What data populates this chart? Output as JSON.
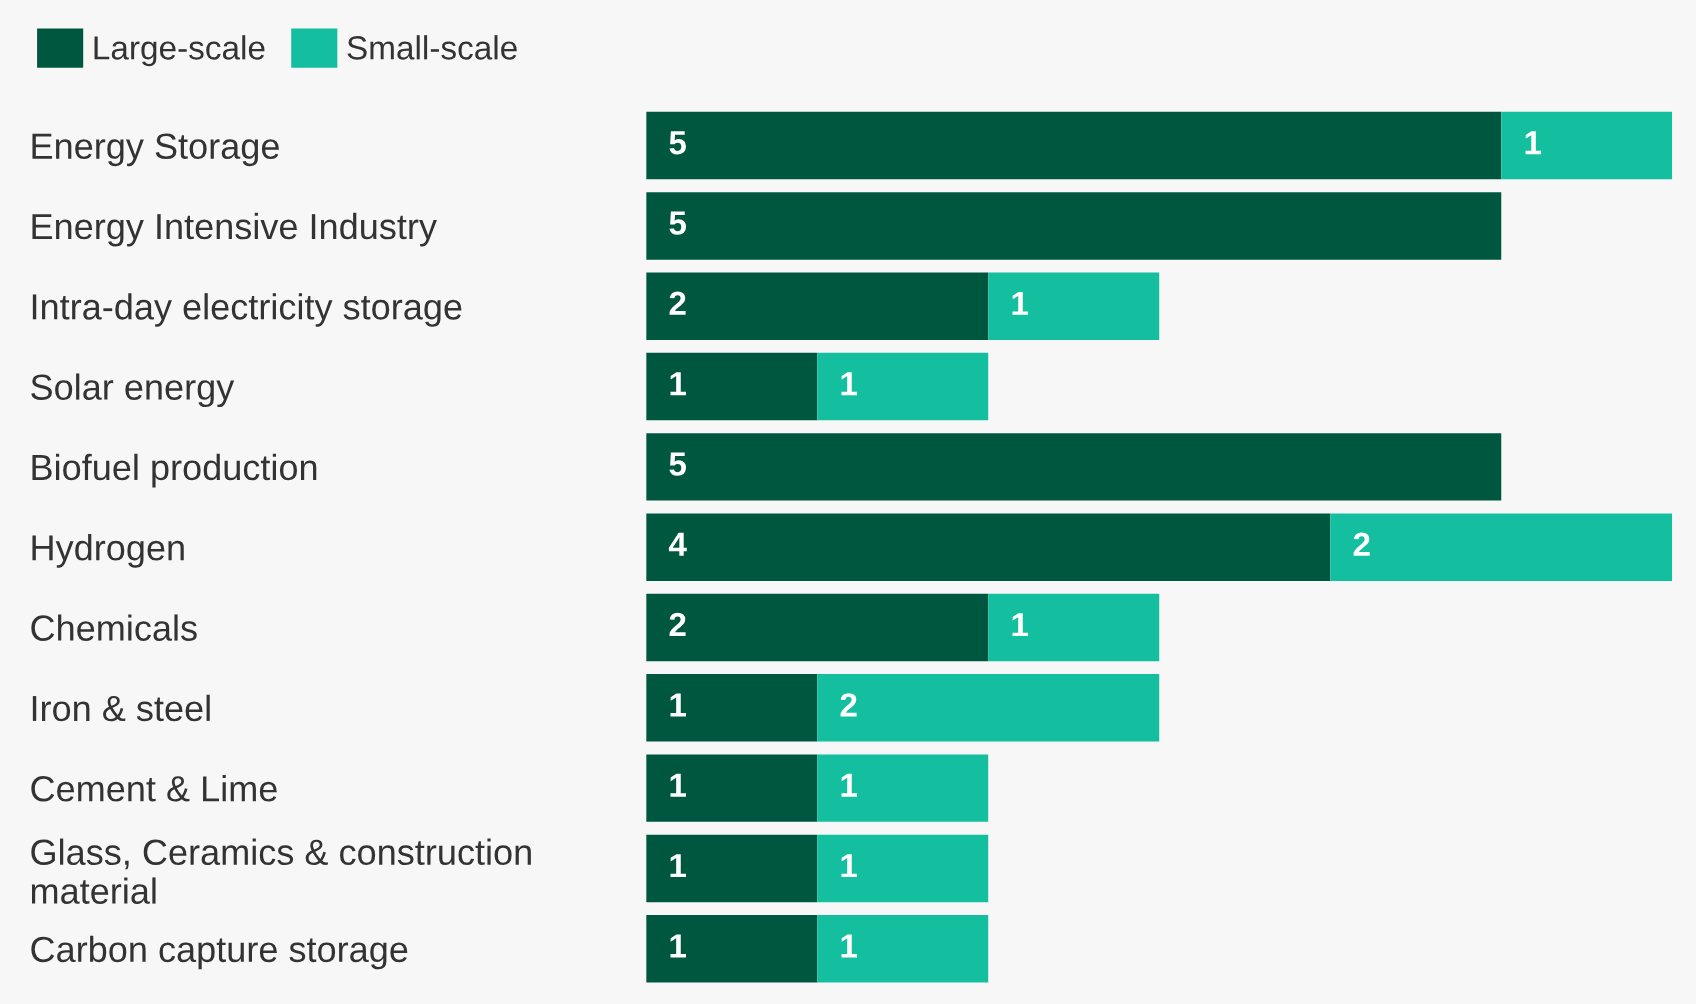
{
  "chart_data": {
    "type": "bar",
    "orientation": "horizontal",
    "stacked": true,
    "data_labels": true,
    "legend": "top left",
    "grid": false,
    "tick_labels": "y",
    "categories": [
      "Energy Storage",
      "Energy Intensive Industry",
      "Intra-day electricity storage",
      "Solar energy",
      "Biofuel production",
      "Hydrogen",
      "Chemicals",
      "Iron & steel",
      "Cement & Lime",
      "Glass, Ceramics & construction\nmaterial",
      "Carbon capture storage"
    ],
    "series": [
      {
        "name": "Large-scale",
        "color": "#00573f",
        "values": [
          5,
          5,
          2,
          1,
          5,
          4,
          2,
          1,
          1,
          1,
          1
        ]
      },
      {
        "name": "Small-scale",
        "color": "#14bfa0",
        "values": [
          1,
          null,
          1,
          1,
          null,
          2,
          1,
          2,
          1,
          1,
          1
        ]
      }
    ]
  }
}
